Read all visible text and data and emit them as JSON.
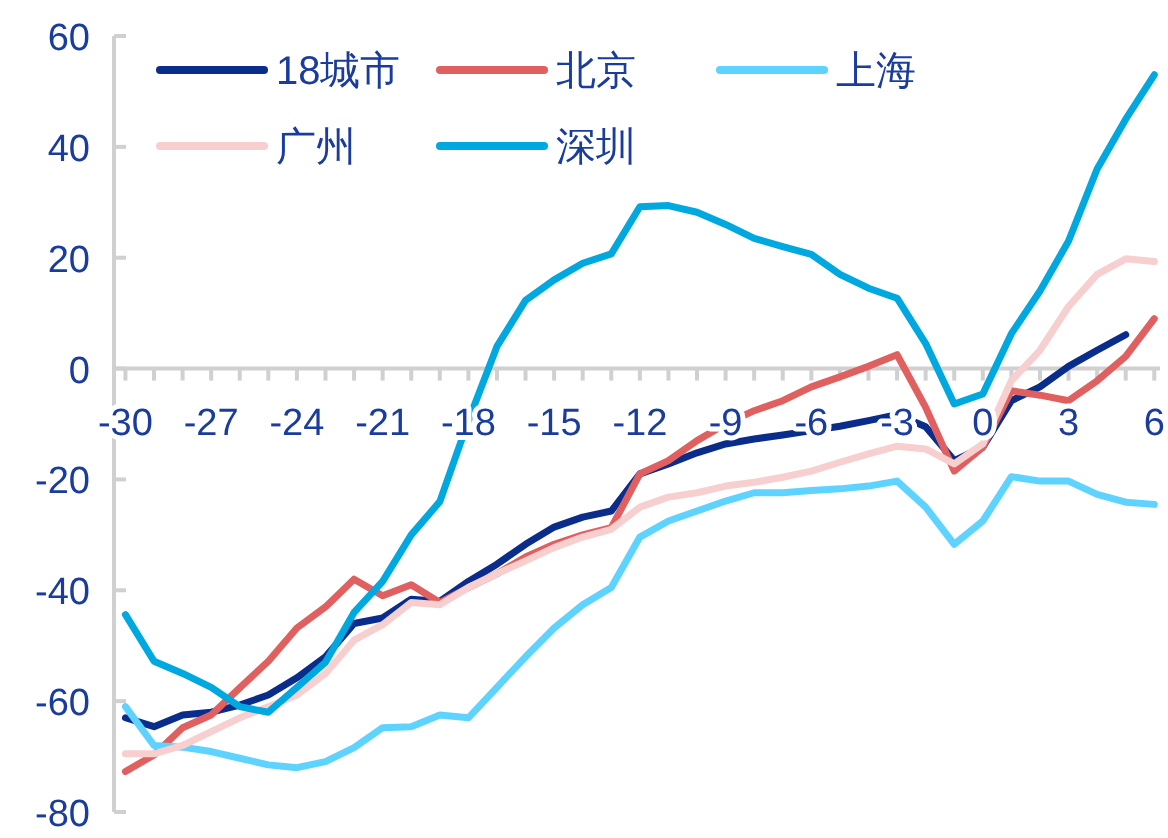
{
  "chart_data": {
    "type": "line",
    "legend": "top left",
    "grid": false,
    "line_style": "solid",
    "marker": "none",
    "x": [
      -30,
      -29,
      -28,
      -27,
      -26,
      -25,
      -24,
      -23,
      -22,
      -21,
      -20,
      -19,
      -18,
      -17,
      -16,
      -15,
      -14,
      -13,
      -12,
      -11,
      -10,
      -9,
      -8,
      -7,
      -6,
      -5,
      -4,
      -3,
      -2,
      -1,
      0,
      1,
      2,
      3,
      4,
      5,
      6
    ],
    "xlim": [
      -30.4,
      6.2
    ],
    "ylim": [
      -80,
      60
    ],
    "yticks": [
      -80,
      -60,
      -40,
      -20,
      0,
      20,
      40,
      60
    ],
    "xticks": [
      -30,
      {
        "value": -29,
        "label": null
      },
      {
        "value": -28,
        "label": null
      },
      -27,
      {
        "value": -26,
        "label": null
      },
      {
        "value": -25,
        "label": null
      },
      -24,
      {
        "value": -23,
        "label": null
      },
      {
        "value": -22,
        "label": null
      },
      -21,
      {
        "value": -20,
        "label": null
      },
      {
        "value": -19,
        "label": null
      },
      -18,
      {
        "value": -17,
        "label": null
      },
      {
        "value": -16,
        "label": null
      },
      -15,
      {
        "value": -14,
        "label": null
      },
      {
        "value": -13,
        "label": null
      },
      -12,
      {
        "value": -11,
        "label": null
      },
      {
        "value": -10,
        "label": null
      },
      -9,
      {
        "value": -8,
        "label": null
      },
      {
        "value": -7,
        "label": null
      },
      -6,
      {
        "value": -5,
        "label": null
      },
      {
        "value": -4,
        "label": null
      },
      -3,
      {
        "value": -2,
        "label": null
      },
      {
        "value": -1,
        "label": null
      },
      0,
      {
        "value": 1,
        "label": null
      },
      {
        "value": 2,
        "label": null
      },
      3,
      {
        "value": 4,
        "label": null
      },
      {
        "value": 5,
        "label": null
      },
      6
    ],
    "series": [
      {
        "name": "18城市",
        "color": "#0a2d8c",
        "values": [
          -63,
          -64.6,
          -62.5,
          -62,
          -60.7,
          -58.9,
          -55.8,
          -52,
          -46,
          -45,
          -41.6,
          -42,
          -38.4,
          -35.3,
          -31.7,
          -28.6,
          -26.8,
          -25.7,
          -19,
          -17.2,
          -15.2,
          -13.6,
          -12.7,
          -12,
          -11.2,
          -10.4,
          -9.4,
          -8.3,
          -10.5,
          -16.6,
          -14.2,
          -5.8,
          -3.3,
          0.4,
          3.3,
          6.1,
          null
        ]
      },
      {
        "name": "北京",
        "color": "#e06060",
        "values": [
          -72.7,
          -69.7,
          -64.8,
          -62.5,
          -57.6,
          -52.8,
          -46.8,
          -43,
          -38,
          -41,
          -39,
          -42.2,
          -39.5,
          -37,
          -34,
          -31.7,
          -30,
          -28.7,
          -19,
          -16.6,
          -13,
          -10,
          -7.6,
          -5.8,
          -3.3,
          -1.5,
          0.4,
          2.5,
          -7,
          -18.5,
          -14.2,
          -4,
          -4.8,
          -5.8,
          -2.2,
          2.2,
          9
        ]
      },
      {
        "name": "上海",
        "color": "#5fd3ff",
        "values": [
          -61,
          -68,
          -68.3,
          -69.1,
          -70.3,
          -71.5,
          -72,
          -70.9,
          -68.4,
          -64.8,
          -64.6,
          -62.5,
          -63,
          -57.5,
          -52,
          -46.8,
          -42.6,
          -39.5,
          -30.4,
          -27.5,
          -25.7,
          -23.9,
          -22.4,
          -22.4,
          -22,
          -21.7,
          -21.2,
          -20.3,
          -25,
          -31.7,
          -27.5,
          -19.5,
          -20.3,
          -20.3,
          -22.7,
          -24.1,
          -24.5
        ]
      },
      {
        "name": "广州",
        "color": "#f8cfcf",
        "values": [
          -69.5,
          -69.5,
          -68,
          -65.5,
          -63,
          -61,
          -58.9,
          -55,
          -49,
          -46.2,
          -42.2,
          -42.6,
          -39.5,
          -37,
          -34.7,
          -32.3,
          -30.4,
          -29,
          -25,
          -23.2,
          -22.4,
          -21.2,
          -20.5,
          -19.6,
          -18.5,
          -16.9,
          -15.4,
          -14,
          -14.5,
          -17.2,
          -13.6,
          -2.2,
          3.3,
          11.2,
          17,
          19.8,
          19.3
        ]
      },
      {
        "name": "深圳",
        "color": "#00a8e0",
        "values": [
          -44.4,
          -52.8,
          -55,
          -57.5,
          -61,
          -62,
          -57.5,
          -53,
          -44,
          -38.4,
          -30,
          -24,
          -9.4,
          4,
          12.3,
          16,
          19,
          20.7,
          29.2,
          29.4,
          28.2,
          26,
          23.5,
          22,
          20.6,
          17,
          14.5,
          12.7,
          4.5,
          -6.4,
          -4.6,
          6.3,
          14,
          23,
          36,
          45,
          53
        ]
      }
    ]
  }
}
